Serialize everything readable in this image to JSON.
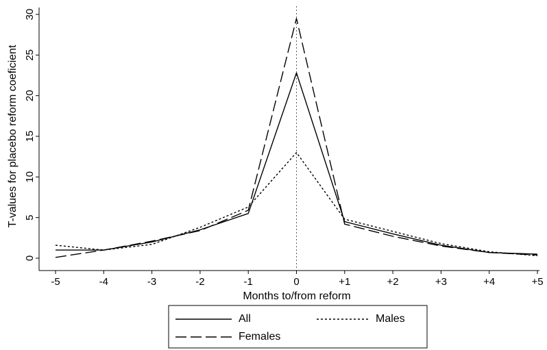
{
  "chart_data": {
    "type": "line",
    "title": "",
    "xlabel": "Months to/from reform",
    "ylabel": "T-values for placebo reform coeficient",
    "x": [
      -5,
      -4,
      -3,
      -2,
      -1,
      0,
      1,
      2,
      3,
      4,
      5
    ],
    "x_tick_labels": [
      "-5",
      "-4",
      "-3",
      "-2",
      "-1",
      "0",
      "+1",
      "+2",
      "+3",
      "+4",
      "+5"
    ],
    "y_ticks": [
      0,
      5,
      10,
      15,
      20,
      25,
      30
    ],
    "xlim": [
      -5,
      5
    ],
    "ylim": [
      0,
      30
    ],
    "grid": false,
    "reference_line": {
      "x": 0,
      "style": "dotted"
    },
    "legend_placement": "bottom",
    "series": [
      {
        "name": "All",
        "style": "solid",
        "color": "#000000",
        "values": [
          1.0,
          1.0,
          2.0,
          3.5,
          5.5,
          22.8,
          4.5,
          3.0,
          1.6,
          0.7,
          0.5
        ]
      },
      {
        "name": "Males",
        "style": "dotted",
        "color": "#000000",
        "values": [
          1.6,
          1.0,
          1.7,
          3.8,
          6.3,
          13.0,
          4.8,
          3.3,
          1.8,
          0.8,
          0.3
        ]
      },
      {
        "name": "Females",
        "style": "dashed",
        "color": "#000000",
        "values": [
          0.1,
          1.0,
          2.1,
          3.4,
          5.9,
          29.5,
          4.2,
          2.7,
          1.5,
          0.7,
          0.4
        ]
      }
    ]
  }
}
